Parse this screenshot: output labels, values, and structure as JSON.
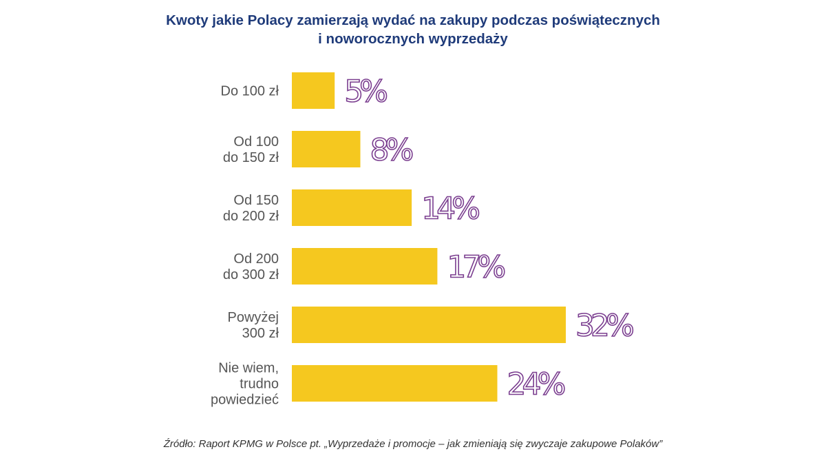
{
  "chart_data": {
    "type": "bar",
    "orientation": "horizontal",
    "title_lines": [
      "Kwoty jakie Polacy zamierzają wydać na zakupy podczas poświątecznych",
      "i noworocznych wyprzedaży"
    ],
    "categories": [
      [
        "Do 100 zł"
      ],
      [
        "Od 100",
        "do 150 zł"
      ],
      [
        "Od 150",
        "do 200 zł"
      ],
      [
        "Od 200",
        "do 300 zł"
      ],
      [
        "Powyżej",
        "300 zł"
      ],
      [
        "Nie wiem,",
        "trudno",
        "powiedzieć"
      ]
    ],
    "values": [
      5,
      8,
      14,
      17,
      32,
      24
    ],
    "value_labels": [
      "5%",
      "8%",
      "14%",
      "17%",
      "32%",
      "24%"
    ],
    "xlim": [
      0,
      32
    ],
    "grid": false,
    "source": "Źródło: Raport KPMG w Polsce pt. „Wyprzedaże i promocje – jak zmieniają się zwyczaje zakupowe Polaków”"
  },
  "colors": {
    "title": "#1f3b7a",
    "bar": "#f5c81f",
    "value_label": "#7a3d8f",
    "category_label": "#555555",
    "source": "#333333"
  }
}
